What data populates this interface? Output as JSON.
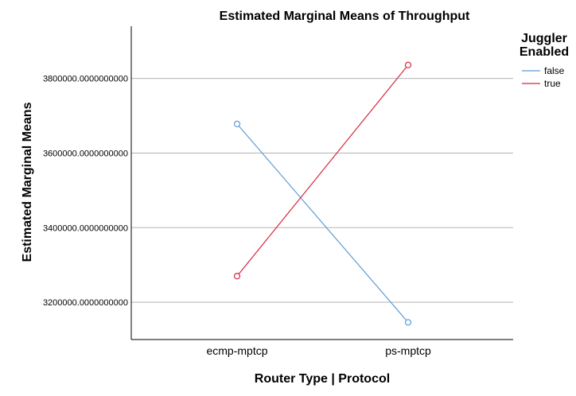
{
  "chart_data": {
    "type": "line",
    "title": "Estimated Marginal Means of Throughput",
    "xlabel": "Router Type | Protocol",
    "ylabel": "Estimated Marginal Means",
    "categories": [
      "ecmp-mptcp",
      "ps-mptcp"
    ],
    "ylim": [
      3100000,
      3940000
    ],
    "yticks": [
      3200000,
      3400000,
      3600000,
      3800000
    ],
    "ytick_labels": [
      "3200000.0000000000",
      "3400000.0000000000",
      "3600000.0000000000",
      "3800000.0000000000"
    ],
    "grid": "horizontal",
    "legend": {
      "title_line1": "Juggler",
      "title_line2": "Enabled",
      "placement": "right"
    },
    "series": [
      {
        "name": "false",
        "color": "#5b9bd5",
        "values": [
          3678000,
          3146000
        ]
      },
      {
        "name": "true",
        "color": "#d6263e",
        "values": [
          3270000,
          3836000
        ]
      }
    ],
    "marker": "open-circle"
  }
}
